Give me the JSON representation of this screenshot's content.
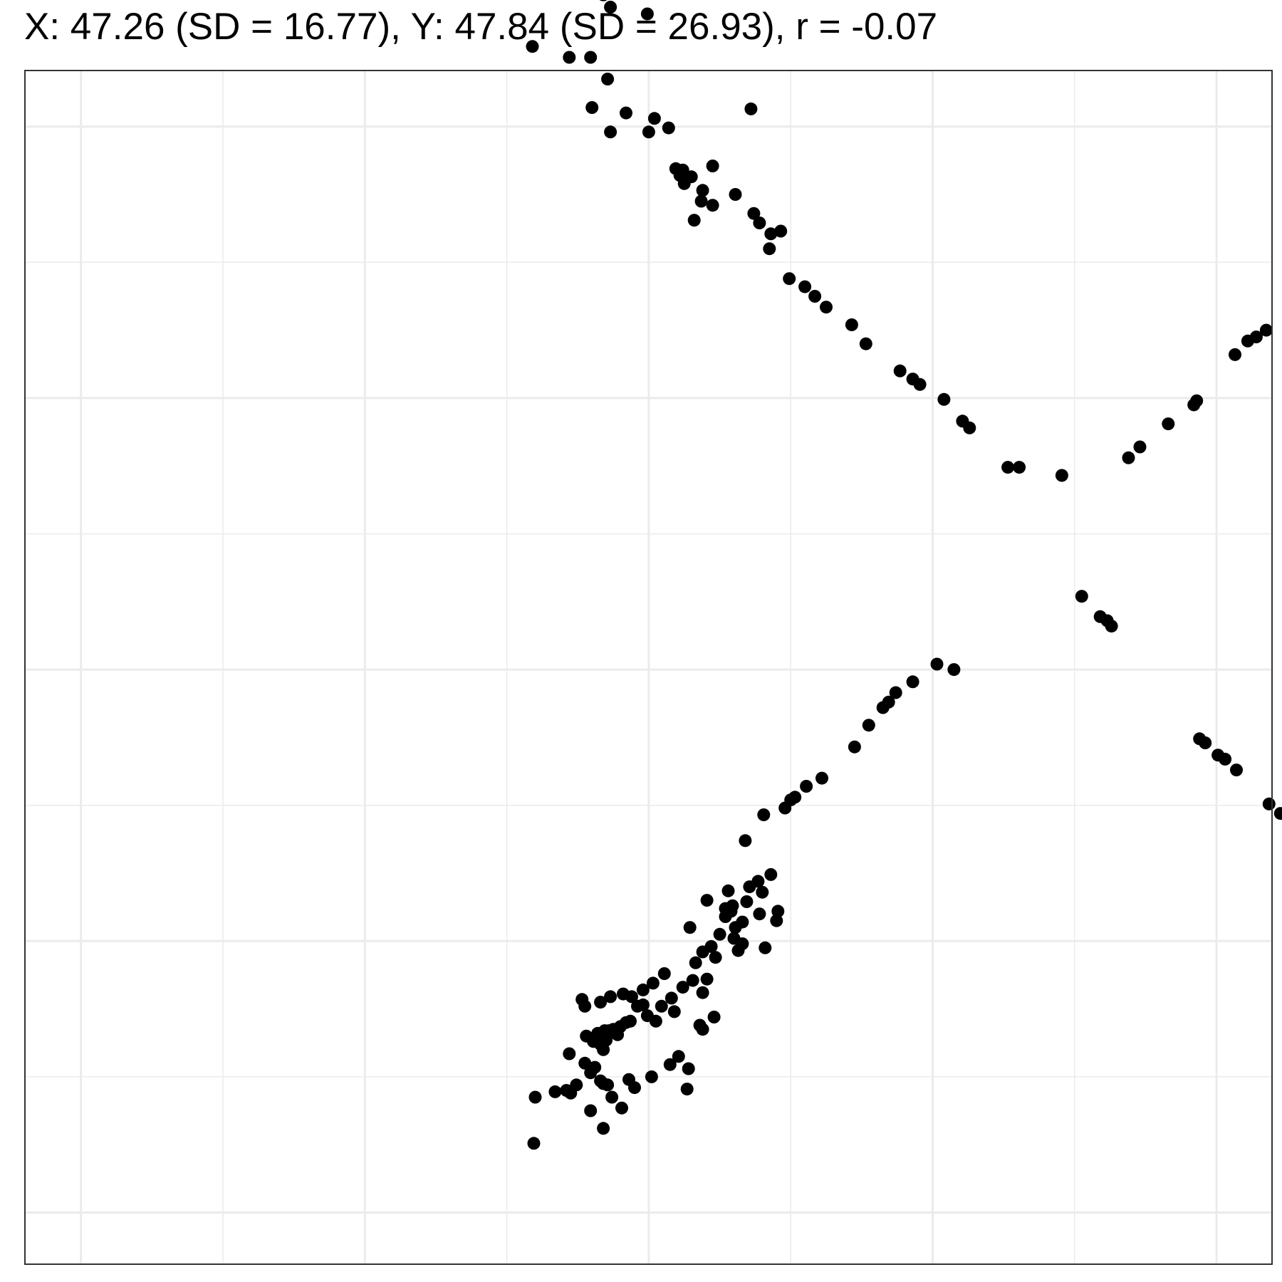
{
  "chart_data": {
    "type": "scatter",
    "title": "X: 47.26 (SD = 16.77), Y: 47.84 (SD = 26.93), r = -0.07",
    "xlabel": "",
    "ylabel": "",
    "xlim": [
      0,
      100
    ],
    "ylim": [
      0,
      100
    ],
    "grid": true,
    "point_color": "#000000",
    "gridline_color": "#ebebeb",
    "border_color": "#333333",
    "points": [
      [
        47.6,
        93.0
      ],
      [
        36.8,
        89.7
      ],
      [
        37.3,
        88.8
      ],
      [
        39.9,
        88.3
      ],
      [
        31.8,
        85.9
      ],
      [
        34.4,
        85.1
      ],
      [
        35.9,
        85.1
      ],
      [
        37.1,
        83.5
      ],
      [
        36.0,
        81.4
      ],
      [
        38.4,
        81.0
      ],
      [
        40.4,
        80.6
      ],
      [
        47.2,
        81.3
      ],
      [
        40.0,
        79.6
      ],
      [
        41.4,
        79.9
      ],
      [
        37.3,
        79.6
      ],
      [
        44.5,
        77.1
      ],
      [
        41.9,
        76.9
      ],
      [
        42.4,
        76.8
      ],
      [
        42.2,
        76.4
      ],
      [
        43.0,
        76.3
      ],
      [
        42.5,
        75.8
      ],
      [
        43.8,
        75.3
      ],
      [
        43.7,
        74.5
      ],
      [
        46.1,
        75.0
      ],
      [
        44.5,
        74.2
      ],
      [
        47.4,
        73.6
      ],
      [
        43.2,
        73.1
      ],
      [
        47.8,
        72.9
      ],
      [
        48.6,
        72.1
      ],
      [
        49.3,
        72.3
      ],
      [
        48.5,
        71.0
      ],
      [
        49.9,
        68.8
      ],
      [
        51.0,
        68.2
      ],
      [
        51.7,
        67.5
      ],
      [
        52.5,
        66.7
      ],
      [
        54.3,
        65.4
      ],
      [
        55.3,
        64.0
      ],
      [
        57.7,
        62.0
      ],
      [
        58.6,
        61.4
      ],
      [
        59.1,
        61.0
      ],
      [
        60.8,
        59.9
      ],
      [
        62.1,
        58.3
      ],
      [
        62.6,
        57.8
      ],
      [
        65.3,
        54.9
      ],
      [
        69.1,
        54.3
      ],
      [
        91.8,
        90.9
      ],
      [
        98.8,
        91.0
      ],
      [
        94.3,
        88.5
      ],
      [
        96.0,
        81.2
      ],
      [
        99.3,
        80.6
      ],
      [
        96.9,
        79.5
      ],
      [
        95.4,
        76.0
      ],
      [
        95.0,
        73.0
      ],
      [
        90.5,
        70.4
      ],
      [
        90.2,
        69.2
      ],
      [
        86.0,
        68.9
      ],
      [
        86.0,
        66.1
      ],
      [
        83.5,
        65.0
      ],
      [
        82.8,
        64.5
      ],
      [
        82.2,
        64.2
      ],
      [
        81.3,
        63.2
      ],
      [
        78.6,
        59.8
      ],
      [
        78.4,
        59.5
      ],
      [
        76.6,
        58.1
      ],
      [
        74.6,
        56.4
      ],
      [
        73.8,
        55.6
      ],
      [
        66.1,
        54.9
      ],
      [
        70.5,
        45.4
      ],
      [
        71.8,
        43.9
      ],
      [
        72.3,
        43.6
      ],
      [
        72.6,
        43.2
      ],
      [
        60.3,
        40.4
      ],
      [
        61.5,
        40.0
      ],
      [
        58.6,
        39.1
      ],
      [
        57.4,
        38.3
      ],
      [
        56.9,
        37.6
      ],
      [
        56.5,
        37.2
      ],
      [
        55.5,
        35.9
      ],
      [
        54.5,
        34.3
      ],
      [
        52.2,
        32.0
      ],
      [
        51.1,
        31.4
      ],
      [
        50.3,
        30.6
      ],
      [
        50.0,
        30.4
      ],
      [
        49.6,
        29.8
      ],
      [
        48.1,
        29.3
      ],
      [
        46.8,
        27.4
      ],
      [
        78.8,
        34.9
      ],
      [
        79.2,
        34.6
      ],
      [
        80.1,
        33.7
      ],
      [
        80.6,
        33.4
      ],
      [
        81.4,
        32.6
      ],
      [
        83.7,
        30.1
      ],
      [
        84.5,
        29.4
      ],
      [
        85.6,
        28.4
      ],
      [
        86.0,
        28.2
      ],
      [
        89.0,
        25.1
      ],
      [
        89.4,
        24.3
      ],
      [
        89.8,
        23.8
      ],
      [
        85.5,
        24.0
      ],
      [
        86.3,
        23.3
      ],
      [
        86.3,
        22.5
      ],
      [
        88.2,
        21.6
      ],
      [
        88.7,
        21.4
      ],
      [
        89.4,
        21.2
      ],
      [
        86.8,
        21.4
      ],
      [
        90.2,
        20.5
      ],
      [
        86.3,
        20.3
      ],
      [
        88.4,
        20.1
      ],
      [
        92.9,
        17.6
      ],
      [
        91.5,
        18.4
      ],
      [
        93.0,
        15.9
      ],
      [
        95.2,
        14.1
      ],
      [
        91.1,
        9.9
      ],
      [
        94.6,
        9.3
      ],
      [
        92.4,
        8.7
      ],
      [
        48.6,
        24.9
      ],
      [
        47.7,
        24.4
      ],
      [
        47.1,
        24.0
      ],
      [
        48.0,
        23.6
      ],
      [
        45.6,
        23.7
      ],
      [
        46.9,
        22.9
      ],
      [
        44.1,
        23.0
      ],
      [
        45.9,
        22.6
      ],
      [
        45.4,
        22.4
      ],
      [
        45.8,
        22.2
      ],
      [
        47.8,
        22.0
      ],
      [
        45.4,
        21.8
      ],
      [
        49.1,
        22.2
      ],
      [
        49.0,
        21.5
      ],
      [
        46.1,
        21.0
      ],
      [
        46.6,
        21.4
      ],
      [
        42.9,
        21.0
      ],
      [
        45.0,
        20.5
      ],
      [
        44.4,
        19.6
      ],
      [
        44.7,
        18.8
      ],
      [
        43.8,
        19.2
      ],
      [
        46.0,
        20.2
      ],
      [
        46.6,
        19.8
      ],
      [
        46.3,
        19.3
      ],
      [
        48.2,
        19.5
      ],
      [
        43.3,
        18.4
      ],
      [
        44.1,
        17.2
      ],
      [
        43.8,
        16.2
      ],
      [
        43.1,
        17.1
      ],
      [
        41.1,
        17.6
      ],
      [
        41.6,
        15.8
      ],
      [
        42.4,
        16.6
      ],
      [
        40.3,
        16.9
      ],
      [
        39.6,
        16.4
      ],
      [
        38.8,
        15.9
      ],
      [
        38.2,
        16.1
      ],
      [
        39.2,
        15.2
      ],
      [
        39.6,
        15.3
      ],
      [
        40.5,
        14.1
      ],
      [
        39.9,
        14.5
      ],
      [
        38.4,
        14.0
      ],
      [
        37.5,
        13.5
      ],
      [
        37.8,
        13.1
      ],
      [
        37.0,
        12.7
      ],
      [
        36.6,
        12.4
      ],
      [
        36.4,
        13.2
      ],
      [
        36.9,
        13.4
      ],
      [
        37.2,
        13.4
      ],
      [
        38.0,
        13.7
      ],
      [
        38.7,
        14.1
      ],
      [
        40.9,
        15.2
      ],
      [
        41.8,
        14.8
      ],
      [
        43.6,
        13.8
      ],
      [
        43.8,
        13.5
      ],
      [
        44.6,
        14.4
      ],
      [
        42.1,
        11.5
      ],
      [
        41.5,
        10.9
      ],
      [
        42.8,
        10.6
      ],
      [
        40.2,
        10.0
      ],
      [
        36.8,
        9.5
      ],
      [
        36.6,
        9.7
      ],
      [
        37.1,
        9.4
      ],
      [
        38.6,
        9.8
      ],
      [
        39.0,
        9.2
      ],
      [
        37.4,
        8.5
      ],
      [
        42.7,
        9.1
      ],
      [
        38.1,
        7.7
      ],
      [
        36.8,
        6.2
      ],
      [
        35.3,
        15.7
      ],
      [
        35.5,
        15.2
      ],
      [
        36.6,
        15.5
      ],
      [
        37.3,
        15.9
      ],
      [
        35.6,
        13.0
      ],
      [
        36.1,
        12.6
      ],
      [
        36.8,
        12.0
      ],
      [
        34.4,
        11.7
      ],
      [
        35.5,
        11.0
      ],
      [
        36.2,
        10.7
      ],
      [
        35.9,
        10.3
      ],
      [
        34.9,
        9.4
      ],
      [
        34.2,
        9.0
      ],
      [
        34.5,
        8.8
      ],
      [
        35.9,
        7.5
      ],
      [
        33.4,
        8.9
      ],
      [
        32.0,
        8.5
      ],
      [
        31.9,
        5.1
      ]
    ]
  }
}
